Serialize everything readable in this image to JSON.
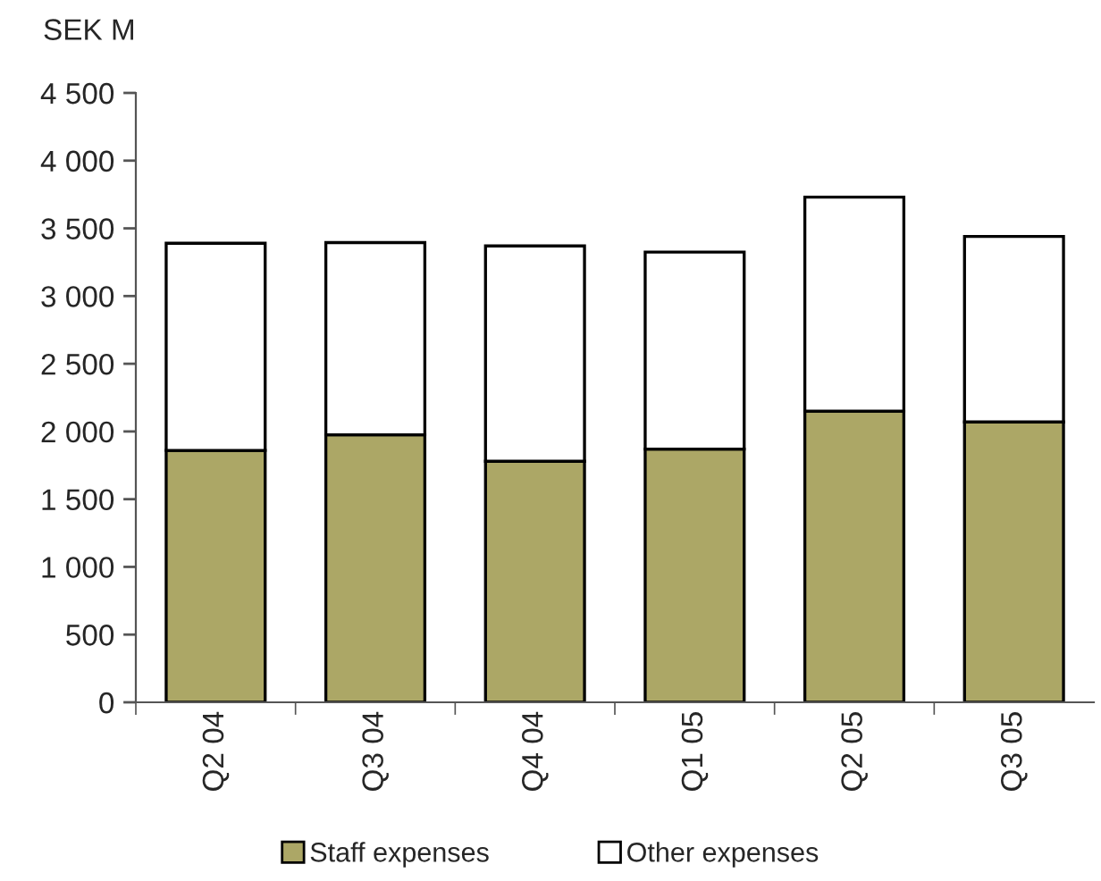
{
  "chart_data": {
    "type": "bar",
    "stacked": true,
    "ylabel": "SEK M",
    "categories": [
      "Q2 04",
      "Q3 04",
      "Q4 04",
      "Q1 05",
      "Q2 05",
      "Q3 05"
    ],
    "series": [
      {
        "name": "Staff expenses",
        "color": "#aca766",
        "values": [
          1860,
          1975,
          1780,
          1870,
          2150,
          2070
        ]
      },
      {
        "name": "Other expenses",
        "color": "#ffffff",
        "values": [
          1530,
          1420,
          1590,
          1455,
          1580,
          1370
        ]
      }
    ],
    "ylim": [
      0,
      4500
    ],
    "yticks": [
      0,
      500,
      {
        "value": 1000,
        "label": "1 000"
      },
      {
        "value": 1500,
        "label": "1 500"
      },
      {
        "value": 2000,
        "label": "2 000"
      },
      {
        "value": 2500,
        "label": "2 500"
      },
      {
        "value": 3000,
        "label": "3 000"
      },
      {
        "value": 3500,
        "label": "3 500"
      },
      {
        "value": 4000,
        "label": "4 000"
      },
      {
        "value": 4500,
        "label": "4 500"
      }
    ],
    "legend": "bottom",
    "grid": false
  }
}
